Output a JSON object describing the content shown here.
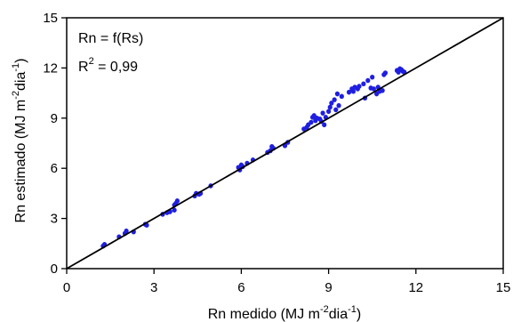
{
  "chart_data": {
    "type": "scatter",
    "title": "",
    "xlabel": "Rn medido (MJ m",
    "xlabel_sup": "-2",
    "xlabel_mid": "dia",
    "xlabel_sup2": "-1",
    "xlabel_end": ")",
    "ylabel": "Rn estimado (MJ m",
    "ylabel_sup": "-2",
    "ylabel_mid": "dia",
    "ylabel_sup2": "-1",
    "ylabel_end": ")",
    "xlim": [
      0,
      15
    ],
    "ylim": [
      0,
      15
    ],
    "xticks": [
      0,
      3,
      6,
      9,
      12,
      15
    ],
    "yticks": [
      0,
      3,
      6,
      9,
      12,
      15
    ],
    "x_tick_labels": [
      "0",
      "3",
      "6",
      "9",
      "12",
      "15"
    ],
    "y_tick_labels": [
      "0",
      "3",
      "6",
      "9",
      "12",
      "15"
    ],
    "grid": false,
    "annotation_line1": "Rn = f(Rs)",
    "annotation_r_prefix": "R",
    "annotation_r_sup": "2",
    "annotation_r_value": " = 0,99",
    "reference_line": {
      "x": [
        0,
        15
      ],
      "y": [
        0,
        15
      ],
      "color": "#000000"
    },
    "marker_color": "#1f1fe0",
    "points": [
      [
        1.25,
        1.35
      ],
      [
        1.3,
        1.45
      ],
      [
        1.8,
        1.9
      ],
      [
        2.0,
        2.1
      ],
      [
        2.05,
        2.25
      ],
      [
        2.3,
        2.2
      ],
      [
        2.7,
        2.65
      ],
      [
        2.75,
        2.6
      ],
      [
        3.3,
        3.25
      ],
      [
        3.45,
        3.35
      ],
      [
        3.55,
        3.4
      ],
      [
        3.7,
        3.5
      ],
      [
        3.7,
        3.8
      ],
      [
        3.75,
        3.9
      ],
      [
        3.8,
        4.05
      ],
      [
        4.4,
        4.35
      ],
      [
        4.45,
        4.5
      ],
      [
        4.55,
        4.45
      ],
      [
        4.6,
        4.5
      ],
      [
        4.95,
        4.95
      ],
      [
        5.9,
        6.05
      ],
      [
        5.95,
        5.9
      ],
      [
        6.0,
        6.2
      ],
      [
        6.05,
        6.1
      ],
      [
        6.2,
        6.3
      ],
      [
        6.4,
        6.5
      ],
      [
        6.9,
        6.95
      ],
      [
        7.0,
        7.05
      ],
      [
        7.05,
        7.3
      ],
      [
        7.1,
        7.2
      ],
      [
        7.5,
        7.35
      ],
      [
        7.6,
        7.55
      ],
      [
        8.15,
        8.35
      ],
      [
        8.25,
        8.45
      ],
      [
        8.3,
        8.6
      ],
      [
        8.4,
        8.75
      ],
      [
        8.45,
        9.05
      ],
      [
        8.5,
        9.15
      ],
      [
        8.55,
        8.85
      ],
      [
        8.6,
        9.0
      ],
      [
        8.7,
        8.95
      ],
      [
        8.75,
        8.8
      ],
      [
        8.8,
        9.3
      ],
      [
        8.85,
        8.6
      ],
      [
        8.9,
        9.05
      ],
      [
        9.0,
        9.4
      ],
      [
        9.05,
        9.65
      ],
      [
        9.1,
        9.9
      ],
      [
        9.2,
        10.1
      ],
      [
        9.25,
        9.5
      ],
      [
        9.3,
        10.45
      ],
      [
        9.35,
        9.75
      ],
      [
        9.45,
        10.3
      ],
      [
        9.7,
        10.55
      ],
      [
        9.8,
        10.75
      ],
      [
        9.85,
        10.6
      ],
      [
        9.9,
        10.85
      ],
      [
        10.0,
        10.75
      ],
      [
        10.05,
        10.9
      ],
      [
        10.2,
        11.05
      ],
      [
        10.25,
        10.2
      ],
      [
        10.35,
        11.25
      ],
      [
        10.45,
        10.8
      ],
      [
        10.5,
        11.45
      ],
      [
        10.55,
        10.75
      ],
      [
        10.65,
        10.45
      ],
      [
        10.7,
        10.85
      ],
      [
        10.75,
        10.6
      ],
      [
        10.85,
        10.65
      ],
      [
        10.9,
        11.6
      ],
      [
        10.95,
        11.7
      ],
      [
        11.35,
        11.85
      ],
      [
        11.4,
        11.75
      ],
      [
        11.45,
        11.95
      ],
      [
        11.5,
        11.9
      ],
      [
        11.55,
        11.8
      ],
      [
        11.6,
        11.75
      ]
    ]
  }
}
